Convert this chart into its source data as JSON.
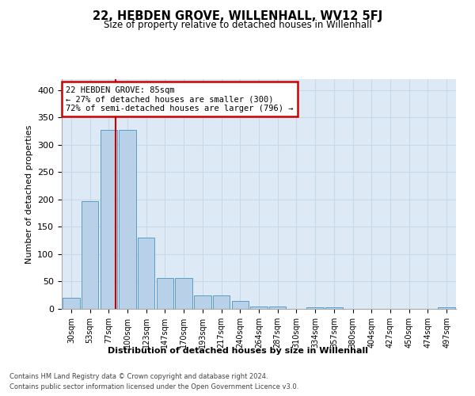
{
  "title": "22, HEBDEN GROVE, WILLENHALL, WV12 5FJ",
  "subtitle": "Size of property relative to detached houses in Willenhall",
  "xlabel": "Distribution of detached houses by size in Willenhall",
  "ylabel": "Number of detached properties",
  "categories": [
    "30sqm",
    "53sqm",
    "77sqm",
    "100sqm",
    "123sqm",
    "147sqm",
    "170sqm",
    "193sqm",
    "217sqm",
    "240sqm",
    "264sqm",
    "287sqm",
    "310sqm",
    "334sqm",
    "357sqm",
    "380sqm",
    "404sqm",
    "427sqm",
    "450sqm",
    "474sqm",
    "497sqm"
  ],
  "bar_heights": [
    20,
    197,
    328,
    328,
    130,
    57,
    57,
    25,
    25,
    15,
    5,
    5,
    0,
    3,
    3,
    0,
    0,
    0,
    0,
    0,
    3
  ],
  "bar_color": "#b8d0e8",
  "bar_edge_color": "#5a9ec4",
  "annotation_line1": "22 HEBDEN GROVE: 85sqm",
  "annotation_line2": "← 27% of detached houses are smaller (300)",
  "annotation_line3": "72% of semi-detached houses are larger (796) →",
  "annotation_box_facecolor": "#ffffff",
  "annotation_box_edgecolor": "#cc0000",
  "vline_color": "#cc0000",
  "ylim": [
    0,
    420
  ],
  "yticks": [
    0,
    50,
    100,
    150,
    200,
    250,
    300,
    350,
    400
  ],
  "grid_color": "#c8d8eb",
  "bg_color": "#ddeaf5",
  "footer_line1": "Contains HM Land Registry data © Crown copyright and database right 2024.",
  "footer_line2": "Contains public sector information licensed under the Open Government Licence v3.0."
}
